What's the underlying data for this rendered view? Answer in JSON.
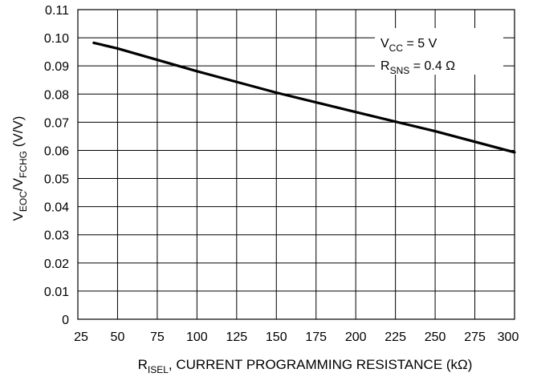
{
  "chart_data": {
    "type": "line",
    "x": [
      35,
      50,
      100,
      150,
      200,
      250,
      300
    ],
    "series": [
      {
        "values": [
          0.0982,
          0.0962,
          0.0881,
          0.0805,
          0.0736,
          0.0668,
          0.0593
        ]
      }
    ],
    "xlim": [
      25,
      300
    ],
    "ylim": [
      0,
      0.11
    ],
    "x_ticks": [
      "25",
      "50",
      "75",
      "100",
      "125",
      "150",
      "175",
      "200",
      "225",
      "250",
      "275",
      "300"
    ],
    "y_ticks": [
      "0",
      "0.01",
      "0.02",
      "0.03",
      "0.04",
      "0.05",
      "0.06",
      "0.07",
      "0.08",
      "0.09",
      "0.10",
      "0.11"
    ],
    "xlabel": {
      "main": "R",
      "sub": "ISEL",
      "rest": ", CURRENT PROGRAMMING RESISTANCE (kΩ)"
    },
    "ylabel": {
      "v1": "V",
      "sub1": "EOC",
      "slash": "/V",
      "sub2": "FCHG",
      "rest": " (V/V)"
    },
    "annotations": [
      {
        "main": "V",
        "sub": "CC",
        "rest": " = 5 V"
      },
      {
        "main": "R",
        "sub": "SNS",
        "rest": " = 0.4 Ω"
      }
    ],
    "grid": true,
    "line_color": "#000000"
  }
}
